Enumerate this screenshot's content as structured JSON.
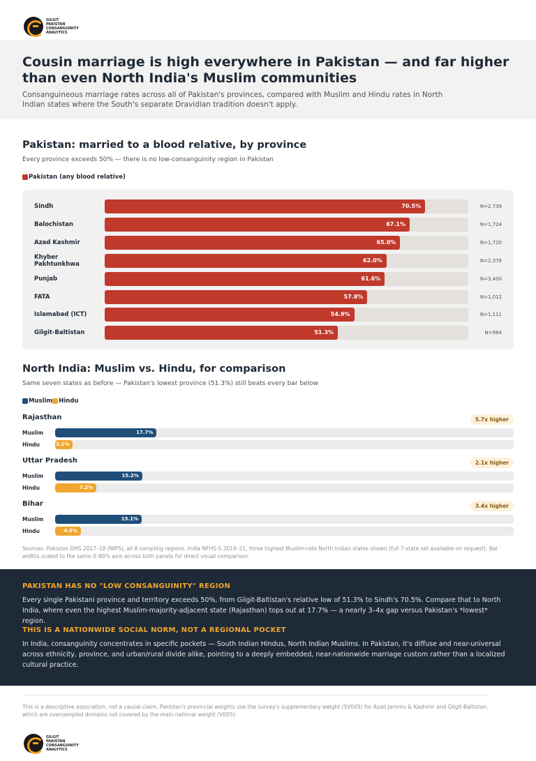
{
  "brand": {
    "logo_text": "GILGIT PAKISTAN CONSANGUINITY ANALYTICS"
  },
  "header": {
    "title": "Cousin marriage is high everywhere in Pakistan — and far higher than even North India's Muslim communities",
    "subtitle": "Consanguineous marriage rates across all of Pakistan's provinces, compared with Muslim and Hindu rates in North Indian states where the South's separate Dravidian tradition doesn't apply."
  },
  "pakistan_section": {
    "title": "Pakistan: married to a blood relative, by province",
    "subtitle": "Every province exceeds 50% — there is no low-consanguinity region in Pakistan",
    "legend_label": "Pakistan (any blood relative)",
    "bar_color": "#c0392b"
  },
  "india_section": {
    "title": "North India: Muslim vs. Hindu, for comparison",
    "subtitle": "Same seven states as before — Pakistan's lowest province (51.3%) still beats every bar below",
    "legend_muslim": "Muslim",
    "legend_hindu": "Hindu",
    "muslim_color": "#1f4e79",
    "hindu_color": "#f0a62e"
  },
  "chart_data": [
    {
      "type": "bar",
      "title": "Pakistan: married to a blood relative, by province",
      "axis_range": [
        0,
        80
      ],
      "categories": [
        "Sindh",
        "Balochistan",
        "Azad Kashmir",
        "Khyber Pakhtunkhwa",
        "Punjab",
        "FATA",
        "Islamabad (ICT)",
        "Gilgit-Baltistan"
      ],
      "values": [
        70.5,
        67.1,
        65.0,
        62.0,
        61.6,
        57.8,
        54.9,
        51.3
      ],
      "value_labels": [
        "70.5%",
        "67.1%",
        "65.0%",
        "62.0%",
        "61.6%",
        "57.8%",
        "54.9%",
        "51.3%"
      ],
      "sample_sizes": [
        "N=2,739",
        "N=1,724",
        "N=1,720",
        "N=2,378",
        "N=3,400",
        "N=1,012",
        "N=1,111",
        "N=984"
      ],
      "series": [
        {
          "name": "Pakistan (any blood relative)",
          "values": [
            70.5,
            67.1,
            65.0,
            62.0,
            61.6,
            57.8,
            54.9,
            51.3
          ]
        }
      ]
    },
    {
      "type": "bar",
      "title": "North India: Muslim vs. Hindu, for comparison",
      "axis_range": [
        0,
        80
      ],
      "categories": [
        "Rajasthan",
        "Uttar Pradesh",
        "Bihar"
      ],
      "ratio_badges": [
        "5.7x higher",
        "2.1x higher",
        "3.4x higher"
      ],
      "series": [
        {
          "name": "Muslim",
          "values": [
            17.7,
            15.2,
            15.1
          ],
          "value_labels": [
            "17.7%",
            "15.2%",
            "15.1%"
          ]
        },
        {
          "name": "Hindu",
          "values": [
            3.1,
            7.2,
            4.5
          ],
          "value_labels": [
            "3.1%",
            "7.2%",
            "4.5%"
          ]
        }
      ]
    }
  ],
  "sources": "Sources: Pakistan DHS 2017–18 (NIPS), all 8 sampling regions. India NFHS-5 2019–21, three highest Muslim-rate North Indian states shown (full 7-state set available on request). Bar widths scaled to the same 0–80% axis across both panels for direct visual comparison.",
  "insights": [
    {
      "heading": "PAKISTAN HAS NO \"LOW CONSANGUINITY\" REGION",
      "body": "Every single Pakistani province and territory exceeds 50%, from Gilgit-Baltistan's relative low of 51.3% to Sindh's 70.5%. Compare that to North India, where even the highest Muslim-majority-adjacent state (Rajasthan) tops out at 17.7% — a nearly 3–4x gap versus Pakistan's *lowest* region."
    },
    {
      "heading": "THIS IS A NATIONWIDE SOCIAL NORM, NOT A REGIONAL POCKET",
      "body": "In India, consanguinity concentrates in specific pockets — South Indian Hindus, North Indian Muslims. In Pakistan, it's diffuse and near-universal across ethnicity, province, and urban/rural divide alike, pointing to a deeply embedded, near-nationwide marriage custom rather than a localized cultural practice."
    }
  ],
  "footnote": "This is a descriptive association, not a causal claim. Pakistan's provincial weights use the survey's supplementary weight (SV005) for Azad Jammu & Kashmir and Gilgit-Baltistan, which are oversampled domains not covered by the main national weight (V005)."
}
